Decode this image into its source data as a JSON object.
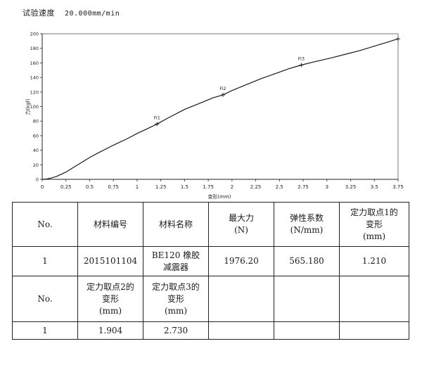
{
  "header": {
    "speed_label": "试验速度",
    "speed_value": "20.000mm/min"
  },
  "chart_data": {
    "type": "line",
    "xlabel": "变形(mm)",
    "ylabel": "力(kgf)",
    "xlim": [
      0,
      3.75
    ],
    "ylim": [
      0,
      200
    ],
    "x_ticks": [
      "0",
      "0.25",
      "0.5",
      "0.75",
      "1",
      "1.25",
      "1.5",
      "1.75",
      "2",
      "2.25",
      "2.5",
      "2.75",
      "3",
      "3.25",
      "3.5",
      "3.75"
    ],
    "y_ticks": [
      "0",
      "20",
      "40",
      "60",
      "80",
      "100",
      "120",
      "140",
      "160",
      "180",
      "200"
    ],
    "grid": false,
    "series": [
      {
        "x": [
          0,
          0.05,
          0.1,
          0.15,
          0.2,
          0.25,
          0.3,
          0.4,
          0.5,
          0.6,
          0.75,
          0.9,
          1.0,
          1.1,
          1.21,
          1.35,
          1.5,
          1.65,
          1.8,
          1.904,
          2.0,
          2.15,
          2.3,
          2.45,
          2.6,
          2.73,
          2.85,
          2.95,
          3.05,
          3.2,
          3.35,
          3.5,
          3.65,
          3.75
        ],
        "y": [
          0,
          0.5,
          2,
          4,
          7,
          10,
          14,
          22,
          30,
          37,
          47,
          56,
          63,
          69,
          76,
          86,
          96,
          104,
          112,
          116,
          122,
          130,
          138,
          145,
          152,
          157,
          161,
          164,
          167,
          172,
          177,
          183,
          189,
          193
        ]
      }
    ],
    "annotations": [
      {
        "label": "Fi1",
        "x": 1.21,
        "y": 76
      },
      {
        "label": "Fi2",
        "x": 1.904,
        "y": 116
      },
      {
        "label": "Fi3",
        "x": 2.73,
        "y": 157
      },
      {
        "label": "",
        "x": 3.75,
        "y": 193
      }
    ]
  },
  "table": {
    "header1": [
      "No.",
      "材料编号",
      "材料名称",
      "最大力",
      "(N)",
      "弹性系数",
      "(N/mm)",
      "定力取点1的",
      "变形",
      "(mm)"
    ],
    "row1": [
      "1",
      "2015101104",
      "BE120 橡胶",
      "减震器",
      "1976.20",
      "565.180",
      "1.210"
    ],
    "header2": [
      "No.",
      "定力取点2的",
      "变形",
      "(mm)",
      "定力取点3的",
      "变形",
      "(mm)"
    ],
    "row2": [
      "1",
      "1.904",
      "2.730"
    ]
  }
}
